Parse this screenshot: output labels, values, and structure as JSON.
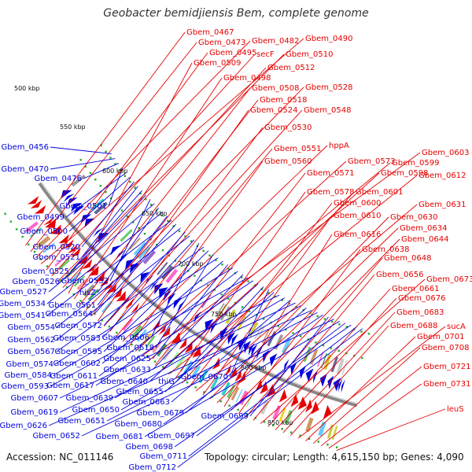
{
  "title": "Geobacter bemidjiensis Bem, complete genome",
  "accession": "Accession: NC_011146",
  "summary": "Topology: circular; Length: 4,615,150 bp; Genes: 4,090",
  "colors": {
    "forward_strand": "#e60000",
    "reverse_strand": "#0000dd",
    "backbone": "#888888",
    "tick_dots": "#22aa22"
  },
  "kbp_marks": [
    "500 kbp",
    "550 kbp",
    "600 kbp",
    "650 kbp",
    "700 kbp",
    "750 kbp",
    "800 kbp",
    "850 kbp"
  ],
  "forward_genes": [
    "Gbem_0467",
    "Gbem_0473",
    "Gbem_0482",
    "Gbem_0490",
    "Gbem_0495",
    "secF",
    "Gbem_0510",
    "Gbem_0512",
    "Gbem_0509",
    "Gbem_0498",
    "Gbem_0508",
    "Gbem_0528",
    "Gbem_0518",
    "Gbem_0524",
    "Gbem_0548",
    "Gbem_0530",
    "Gbem_0551",
    "hppA",
    "Gbem_0560",
    "Gbem_0573",
    "Gbem_0603",
    "Gbem_0599",
    "Gbem_0571",
    "Gbem_0598",
    "Gbem_0612",
    "Gbem_0578",
    "Gbem_0601",
    "Gbem_0600",
    "Gbem_0631",
    "Gbem_0610",
    "Gbem_0630",
    "Gbem_0634",
    "Gbem_0616",
    "Gbem_0644",
    "Gbem_0638",
    "Gbem_0648",
    "Gbem_0656",
    "Gbem_0673",
    "Gbem_0661",
    "Gbem_0676",
    "Gbem_0683",
    "Gbem_0688",
    "sucA",
    "Gbem_0701",
    "Gbem_0708",
    "Gbem_0721",
    "Gbem_0731",
    "leuS"
  ],
  "reverse_genes": [
    "Gbem_0456",
    "Gbem_0470",
    "Gbem_0476",
    "Gbem_0501",
    "Gbem_0499",
    "Gbem_0500",
    "Gbem_0520",
    "Gbem_0521",
    "Gbem_0525",
    "Gbem_0526",
    "Gbem_0552",
    "Gbem_0527",
    "hisZ",
    "Gbem_0534",
    "Gbem_0561",
    "Gbem_0541",
    "Gbem_0564",
    "Gbem_0554",
    "Gbem_0572",
    "Gbem_0562",
    "Gbem_0583",
    "Gbem_0606",
    "Gbem_0567",
    "Gbem_0595",
    "Gbem_0618",
    "Gbem_0574",
    "Gbem_0602",
    "Gbem_0625",
    "Gbem_0584",
    "Gbem_0611",
    "Gbem_0633",
    "Gbem_0593",
    "Gbem_0617",
    "Gbem_0640",
    "thiG",
    "Gbem_0670",
    "Gbem_0655",
    "Gbem_0607",
    "Gbem_0639",
    "Gbem_0663",
    "Gbem_0619",
    "Gbem_0650",
    "Gbem_0679",
    "Gbem_0626",
    "Gbem_0651",
    "Gbem_0680",
    "Gbem_0699",
    "Gbem_0652",
    "Gbem_0681",
    "Gbem_0697",
    "Gbem_0698",
    "Gbem_0711",
    "Gbem_0712"
  ]
}
